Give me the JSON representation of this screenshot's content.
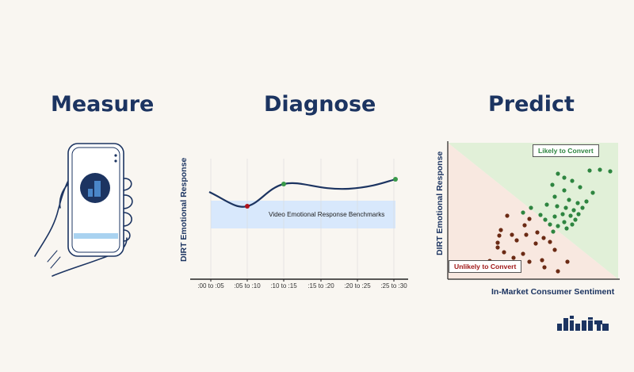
{
  "headings": {
    "measure": "Measure",
    "diagnose": "Diagnose",
    "predict": "Predict"
  },
  "diagnose": {
    "ylabel": "DIRT Emotional Response",
    "benchmark_label": "Video Emotional Response Benchmarks",
    "ticks": [
      ":00 to :05",
      ":05 to :10",
      ":10 to :15",
      ":15 to :20",
      ":20 to :25",
      ":25 to :30"
    ]
  },
  "predict": {
    "ylabel": "DIRT Emotional Response",
    "xlabel": "In-Market Consumer Sentiment",
    "likely_label": "Likely to Convert",
    "unlikely_label": "Unlikely to Convert"
  },
  "colors": {
    "navy": "#1c3461",
    "benchmark": "#d8e8fc",
    "green": "#2e8540",
    "brown": "#6b2a14",
    "red": "#b0141c"
  },
  "icons": {
    "phone": "hand-holding-phone-icon",
    "logo": "dirt-logo"
  }
}
